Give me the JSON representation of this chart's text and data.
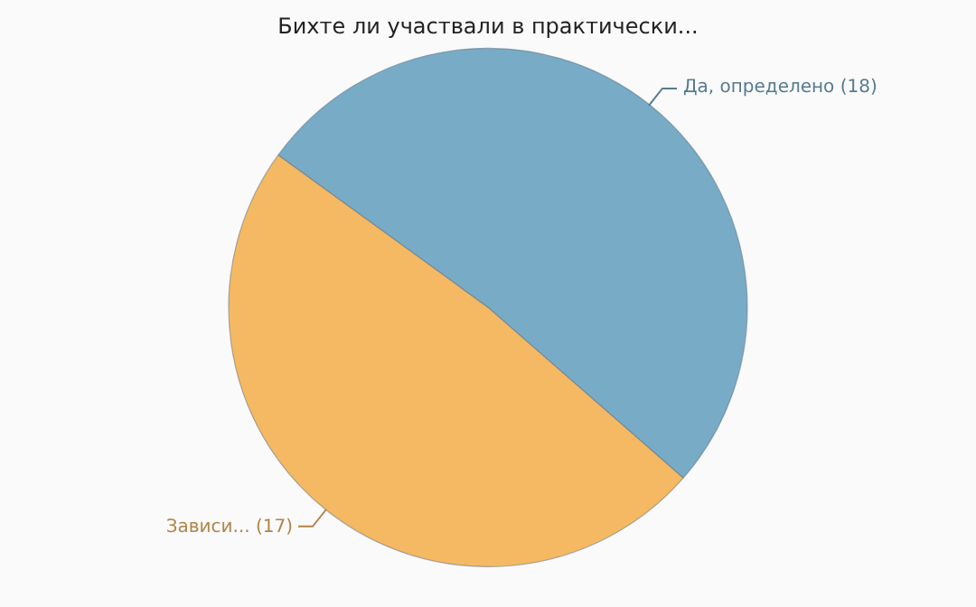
{
  "chart_data": {
    "type": "pie",
    "title": "Бихте ли участвали в практически...",
    "categories": [
      "Да, определено",
      "Зависи..."
    ],
    "values": [
      18,
      17
    ],
    "value_labels": [
      "(18)",
      "(17)"
    ],
    "colors": [
      "#78abc6",
      "#f5b963"
    ],
    "legend": false
  }
}
